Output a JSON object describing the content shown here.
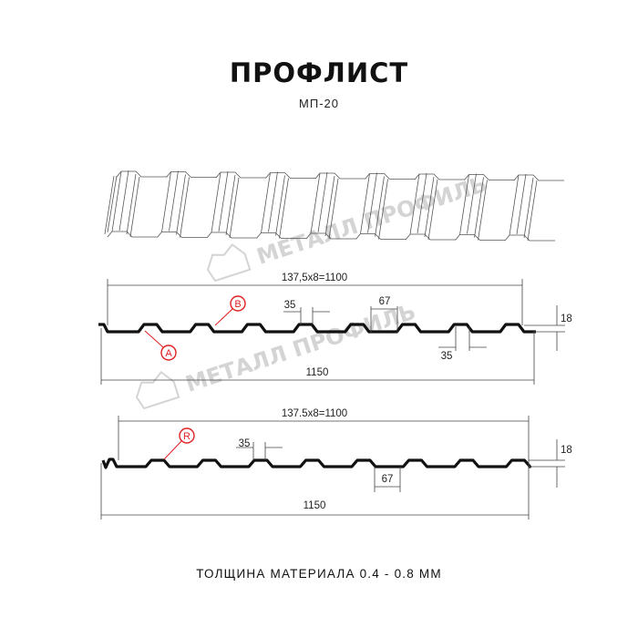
{
  "title": "ПРОФЛИСТ",
  "subtitle": "МП-20",
  "footer": "ТОЛЩИНА МАТЕРИАЛА 0.4 - 0.8 ММ",
  "watermark": "МЕТАЛЛ ПРОФИЛЬ",
  "iso_view": {
    "pitch_label": "137,5x8=1100"
  },
  "profile_1": {
    "pitch_label": "137,5x8=1100",
    "width_label": "1150",
    "rib_top_label": "35",
    "rib_bottom_label": "35",
    "trough_label": "67",
    "height_label": "18",
    "markers": [
      "B",
      "A"
    ],
    "rib_count": 8
  },
  "profile_2": {
    "pitch_label": "137.5x8=1100",
    "width_label": "1150",
    "rib_top_label": "35",
    "trough_label": "67",
    "height_label": "18",
    "markers": [
      "R"
    ],
    "rib_count": 8
  },
  "colors": {
    "profile": "#111111",
    "marker": "#e02020",
    "watermark": "#d4d4d4"
  }
}
